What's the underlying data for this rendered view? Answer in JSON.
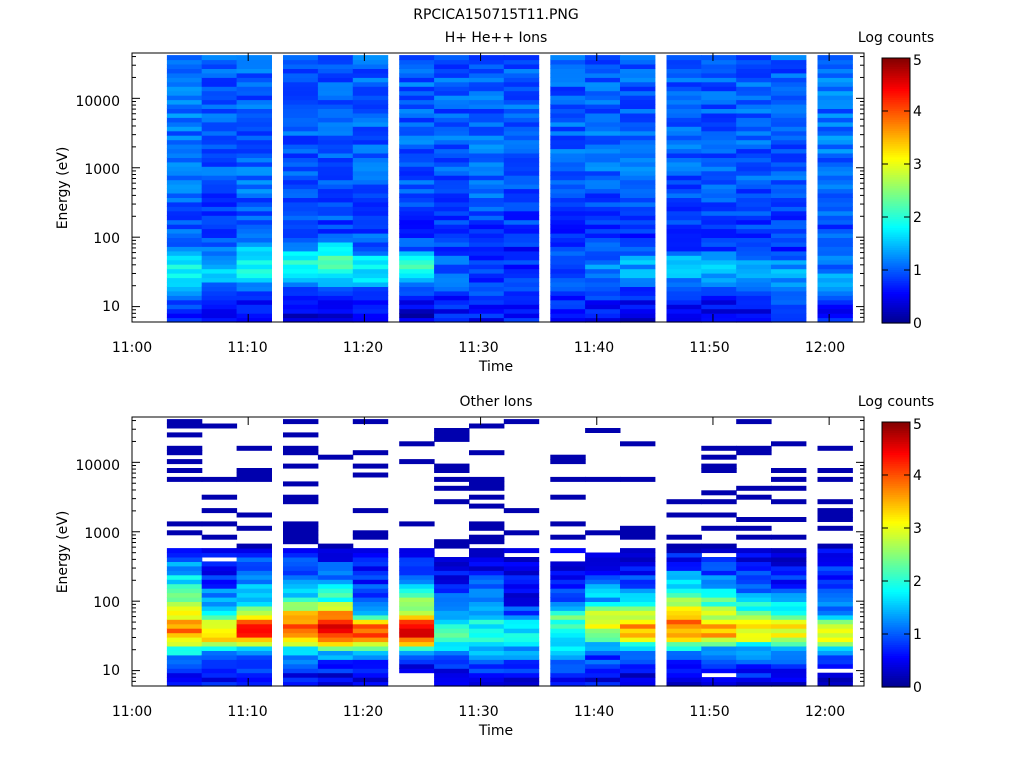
{
  "figure_title": "RPCICA150715T11.PNG",
  "colormap": [
    "#00008f",
    "#0000ff",
    "#00ffff",
    "#ffff00",
    "#ff0000",
    "#800000"
  ],
  "chart_data": [
    {
      "type": "heatmap",
      "title": "H+ He++ Ions",
      "xlabel": "Time",
      "ylabel": "Energy (eV)",
      "yscale": "log",
      "xlim": [
        "11:00",
        "12:03"
      ],
      "ylim": [
        6,
        45000
      ],
      "x_ticks": [
        "11:00",
        "11:10",
        "11:20",
        "11:30",
        "11:40",
        "11:50",
        "12:00"
      ],
      "y_ticks": [
        "10",
        "100",
        "1000",
        "10000"
      ],
      "time_columns": [
        "11:03",
        "11:06",
        "11:09",
        "11:13",
        "11:16",
        "11:19",
        "11:23",
        "11:26",
        "11:29",
        "11:32",
        "11:36",
        "11:39",
        "11:42",
        "11:46",
        "11:49",
        "11:52",
        "11:55",
        "11:59"
      ],
      "energy_range_ev": [
        6,
        42000
      ],
      "colorbar": {
        "label": "Log counts",
        "range": [
          0,
          5
        ],
        "ticks": [
          "0",
          "1",
          "2",
          "3",
          "4",
          "5"
        ]
      },
      "profile": [
        {
          "energy_ev": 8,
          "log_counts": [
            0.6,
            0.5,
            0.5,
            0.4,
            0.5,
            0.5,
            0.3,
            0.6,
            0.6,
            0.6,
            0.6,
            0.6,
            0.4,
            0.5,
            0.5,
            0.5,
            0.6,
            0.6
          ]
        },
        {
          "energy_ev": 12,
          "log_counts": [
            0.9,
            0.7,
            0.6,
            0.5,
            0.6,
            0.7,
            0.5,
            0.7,
            0.7,
            0.7,
            0.7,
            0.7,
            0.6,
            0.7,
            0.6,
            0.6,
            0.8,
            0.8
          ]
        },
        {
          "energy_ev": 18,
          "log_counts": [
            1.2,
            1.0,
            1.0,
            0.9,
            0.9,
            1.0,
            0.9,
            0.9,
            0.8,
            0.8,
            0.9,
            0.9,
            0.9,
            0.9,
            0.9,
            0.9,
            1.0,
            1.1
          ]
        },
        {
          "energy_ev": 28,
          "log_counts": [
            1.7,
            1.5,
            1.8,
            1.7,
            1.8,
            1.7,
            1.7,
            1.0,
            0.9,
            0.8,
            1.0,
            1.2,
            1.3,
            1.4,
            1.4,
            1.3,
            1.4,
            1.3
          ]
        },
        {
          "energy_ev": 45,
          "log_counts": [
            1.8,
            1.5,
            2.0,
            1.9,
            2.2,
            1.8,
            2.3,
            1.0,
            0.8,
            0.7,
            0.9,
            1.2,
            1.4,
            1.6,
            1.5,
            1.2,
            1.2,
            1.1
          ]
        },
        {
          "energy_ev": 70,
          "log_counts": [
            1.2,
            1.0,
            1.4,
            1.3,
            1.6,
            1.1,
            1.0,
            0.8,
            0.8,
            0.7,
            0.8,
            0.9,
            0.9,
            0.9,
            0.8,
            0.7,
            0.8,
            0.9
          ]
        },
        {
          "energy_ev": 120,
          "log_counts": [
            1.0,
            0.8,
            1.0,
            0.9,
            0.9,
            0.9,
            0.8,
            0.8,
            0.8,
            0.8,
            0.8,
            0.8,
            0.8,
            0.8,
            0.7,
            0.8,
            0.8,
            0.9
          ]
        },
        {
          "energy_ev": 300,
          "log_counts": [
            1.0,
            0.9,
            1.0,
            0.9,
            0.9,
            0.9,
            0.9,
            0.9,
            1.0,
            0.9,
            0.9,
            0.9,
            1.0,
            0.9,
            0.9,
            0.9,
            0.9,
            1.0
          ]
        },
        {
          "energy_ev": 1000,
          "log_counts": [
            1.1,
            1.0,
            1.1,
            1.0,
            1.0,
            1.0,
            1.0,
            1.0,
            1.1,
            1.0,
            1.0,
            1.1,
            1.1,
            1.0,
            1.0,
            1.0,
            1.0,
            1.1
          ]
        },
        {
          "energy_ev": 5000,
          "log_counts": [
            1.1,
            1.0,
            1.0,
            1.0,
            1.0,
            1.0,
            1.0,
            1.0,
            1.0,
            1.0,
            1.0,
            1.0,
            1.0,
            1.0,
            1.0,
            1.0,
            1.0,
            1.1
          ]
        },
        {
          "energy_ev": 20000,
          "log_counts": [
            1.1,
            1.0,
            1.0,
            1.0,
            1.0,
            1.0,
            1.0,
            1.0,
            1.0,
            1.0,
            1.0,
            1.0,
            1.0,
            1.0,
            1.0,
            1.0,
            1.0,
            1.1
          ]
        },
        {
          "energy_ev": 42000,
          "log_counts": [
            1.0,
            1.0,
            1.0,
            1.0,
            1.0,
            1.0,
            1.0,
            1.0,
            1.0,
            1.0,
            1.0,
            1.0,
            1.0,
            1.0,
            1.0,
            1.0,
            1.0,
            1.0
          ]
        }
      ]
    },
    {
      "type": "heatmap",
      "title": "Other Ions",
      "xlabel": "Time",
      "ylabel": "Energy (eV)",
      "yscale": "log",
      "xlim": [
        "11:00",
        "12:03"
      ],
      "ylim": [
        6,
        45000
      ],
      "x_ticks": [
        "11:00",
        "11:10",
        "11:20",
        "11:30",
        "11:40",
        "11:50",
        "12:00"
      ],
      "y_ticks": [
        "10",
        "100",
        "1000",
        "10000"
      ],
      "time_columns": [
        "11:03",
        "11:06",
        "11:09",
        "11:13",
        "11:16",
        "11:19",
        "11:23",
        "11:26",
        "11:29",
        "11:32",
        "11:36",
        "11:39",
        "11:42",
        "11:46",
        "11:49",
        "11:52",
        "11:55",
        "11:59"
      ],
      "energy_range_ev": [
        6,
        42000
      ],
      "colorbar": {
        "label": "Log counts",
        "range": [
          0,
          5
        ],
        "ticks": [
          "0",
          "1",
          "2",
          "3",
          "4",
          "5"
        ]
      },
      "profile": [
        {
          "energy_ev": 8,
          "log_counts": [
            0.4,
            0.5,
            0.5,
            0.5,
            0.4,
            0.4,
            0.2,
            0.5,
            0.5,
            0.5,
            0.6,
            0.5,
            0.4,
            0.5,
            0.4,
            0.5,
            0.5,
            0.3
          ]
        },
        {
          "energy_ev": 13,
          "log_counts": [
            0.9,
            0.8,
            0.8,
            0.9,
            0.8,
            0.7,
            0.6,
            0.8,
            0.8,
            0.8,
            0.9,
            0.8,
            0.8,
            0.8,
            0.7,
            0.8,
            0.8,
            0.7
          ]
        },
        {
          "energy_ev": 20,
          "log_counts": [
            2.0,
            1.6,
            1.6,
            1.6,
            1.8,
            1.7,
            1.8,
            1.6,
            1.5,
            1.3,
            1.4,
            1.1,
            1.2,
            1.5,
            1.3,
            1.2,
            1.2,
            1.5
          ]
        },
        {
          "energy_ev": 30,
          "log_counts": [
            3.6,
            3.3,
            4.0,
            3.8,
            4.2,
            4.1,
            4.4,
            2.1,
            1.8,
            1.7,
            1.9,
            2.3,
            3.2,
            3.5,
            3.4,
            3.0,
            3.1,
            3.2
          ]
        },
        {
          "energy_ev": 45,
          "log_counts": [
            3.8,
            3.0,
            4.2,
            4.0,
            4.3,
            3.8,
            4.3,
            1.8,
            1.9,
            1.8,
            2.2,
            3.2,
            3.8,
            3.9,
            3.6,
            3.2,
            3.2,
            2.8
          ]
        },
        {
          "energy_ev": 65,
          "log_counts": [
            3.1,
            2.2,
            2.8,
            3.3,
            3.7,
            1.2,
            2.9,
            1.5,
            1.4,
            0.9,
            2.2,
            2.7,
            2.8,
            3.2,
            2.7,
            2.4,
            2.3,
            1.5
          ]
        },
        {
          "energy_ev": 100,
          "log_counts": [
            2.7,
            1.3,
            1.6,
            2.0,
            2.2,
            1.0,
            2.5,
            1.1,
            1.0,
            0.6,
            1.2,
            1.5,
            1.8,
            2.8,
            2.2,
            1.6,
            1.5,
            1.0
          ]
        },
        {
          "energy_ev": 160,
          "log_counts": [
            2.0,
            1.0,
            1.4,
            1.4,
            1.5,
            0.8,
            1.6,
            0.7,
            0.9,
            0.6,
            0.7,
            1.2,
            1.1,
            1.9,
            1.4,
            1.1,
            0.9,
            0.8
          ]
        },
        {
          "energy_ev": 260,
          "log_counts": [
            1.4,
            0.7,
            1.2,
            1.0,
            1.1,
            0.6,
            1.1,
            0.5,
            0.6,
            0.5,
            0.5,
            0.5,
            0.6,
            1.1,
            1.0,
            0.7,
            0.6,
            0.7
          ]
        },
        {
          "energy_ev": 420,
          "log_counts": [
            1.0,
            0.4,
            1.0,
            0.7,
            0.6,
            0.4,
            0.8,
            0.3,
            0.4,
            0.3,
            0.3,
            0.3,
            0.3,
            0.6,
            0.5,
            0.4,
            0.4,
            0.5
          ]
        },
        {
          "energy_ev": 700,
          "log_counts": [
            0.5,
            0.3,
            0.3,
            0.3,
            0.3,
            0.3,
            0.4,
            0.3,
            0.3,
            0.2,
            0.3,
            0.3,
            0.3,
            0.3,
            0.3,
            0.2,
            0.3,
            0.3
          ]
        },
        {
          "energy_ev": 1100,
          "log_counts": [
            0.3,
            0.2,
            0.2,
            0.2,
            0.2,
            0.2,
            0.2,
            0.2,
            0.2,
            0.2,
            0.2,
            0.2,
            0.2,
            0.2,
            0.2,
            0.2,
            0.2,
            0.2
          ]
        }
      ]
    }
  ]
}
